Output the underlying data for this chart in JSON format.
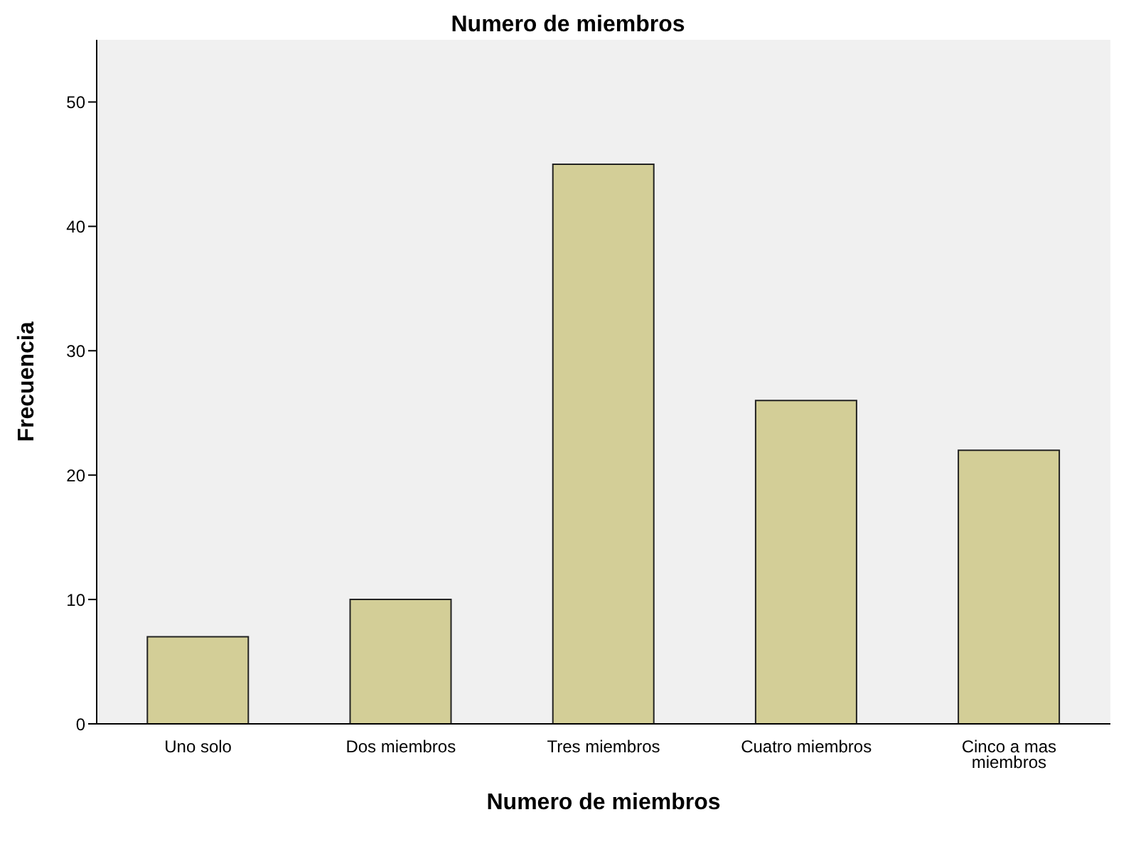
{
  "chart_data": {
    "type": "bar",
    "title": "Numero de miembros",
    "xlabel": "Numero de miembros",
    "ylabel": "Frecuencia",
    "categories": [
      "Uno solo",
      "Dos miembros",
      "Tres miembros",
      "Cuatro miembros",
      "Cinco a mas miembros"
    ],
    "values": [
      7,
      10,
      45,
      26,
      22
    ],
    "color": "#d3ce97",
    "ylim": [
      0,
      55
    ],
    "yticks": [
      0,
      10,
      20,
      30,
      40,
      50
    ],
    "grid": false,
    "legend": false
  }
}
